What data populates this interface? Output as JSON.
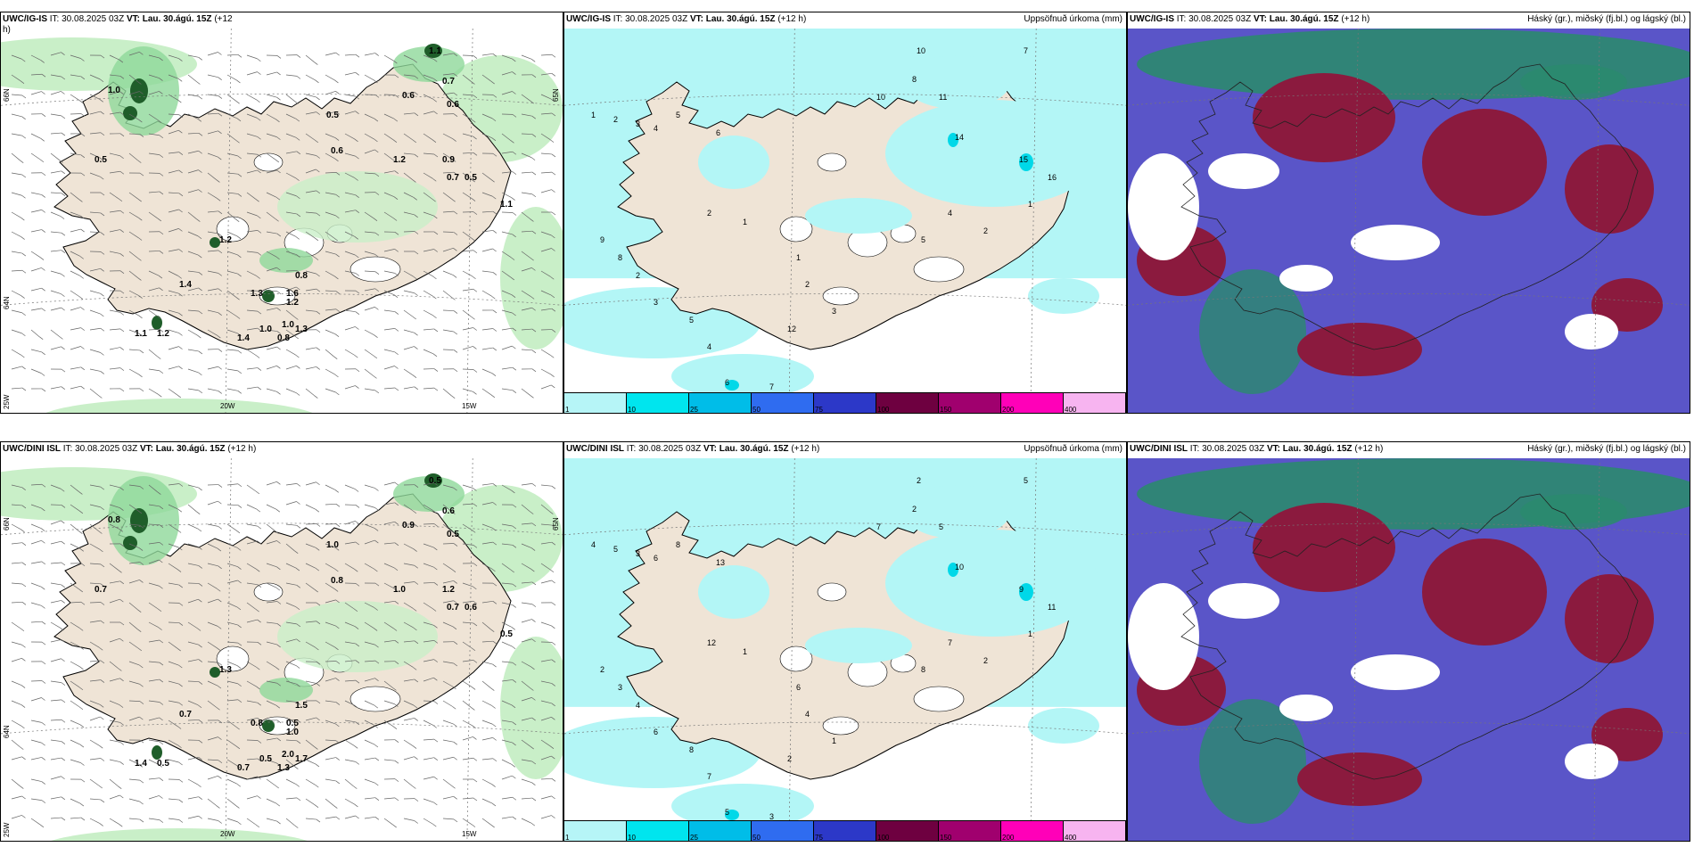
{
  "panels": [
    {
      "model": "UWC/IG-IS",
      "init_text": " IT: 30.08.2025 03Z ",
      "vt_label": "VT: Lau. 30.ágú. 15Z",
      "lead": " (+12",
      "lead2": "h)",
      "right_title": "",
      "type": "wind",
      "labels": [
        "1.1",
        "0.6",
        "0.7",
        "0.6",
        "0.5",
        "1.0",
        "0.5",
        "0.6",
        "1.2",
        "0.9",
        "0.7",
        "0.5",
        "1.1",
        "1.2",
        "1.4",
        "1.3",
        "1.6",
        "0.8",
        "1.2",
        "1.4",
        "1.0",
        "0.8",
        "1.0",
        "1.3",
        "1.1",
        "1.2"
      ]
    },
    {
      "model": "UWC/IG-IS",
      "init_text": " IT: 30.08.2025 03Z ",
      "vt_label": "VT: Lau. 30.ágú. 15Z",
      "lead": " (+12 h)",
      "lead2": "",
      "right_title": "Uppsöfnuð úrkoma (mm)",
      "type": "precip",
      "labels": [
        "10",
        "7",
        "8",
        "1",
        "2",
        "3",
        "4",
        "5",
        "6",
        "10",
        "11",
        "14",
        "15",
        "16",
        "2",
        "1",
        "9",
        "8",
        "2",
        "3",
        "5",
        "4",
        "6",
        "7",
        "12",
        "3",
        "2",
        "1",
        "5",
        "4",
        "2",
        "1"
      ]
    },
    {
      "model": "UWC/IG-IS",
      "init_text": " IT: 30.08.2025 03Z ",
      "vt_label": "VT: Lau. 30.ágú. 15Z",
      "lead": " (+12 h)",
      "lead2": "",
      "right_title": "Háský (gr.), miðský (fj.bl.) og lágský (bl.)",
      "type": "cloud"
    },
    {
      "model": "UWC/DINI ISL",
      "init_text": " IT: 30.08.2025 03Z ",
      "vt_label": "VT: Lau. 30.ágú. 15Z",
      "lead": " (+12 h)",
      "lead2": "",
      "right_title": "",
      "type": "wind",
      "labels": [
        "0.5",
        "0.9",
        "0.6",
        "0.5",
        "1.0",
        "0.8",
        "0.7",
        "0.8",
        "1.0",
        "1.2",
        "0.7",
        "0.6",
        "0.5",
        "1.3",
        "0.7",
        "0.8",
        "0.5",
        "1.5",
        "1.0",
        "0.7",
        "0.5",
        "1.3",
        "2.0",
        "1.7",
        "1.4",
        "0.5"
      ]
    },
    {
      "model": "UWC/DINI ISL",
      "init_text": " IT: 30.08.2025 03Z ",
      "vt_label": "VT: Lau. 30.ágú. 15Z",
      "lead": " (+12 h)",
      "lead2": "",
      "right_title": "Uppsöfnuð úrkoma (mm)",
      "type": "precip",
      "labels": [
        "2",
        "5",
        "2",
        "4",
        "5",
        "3",
        "6",
        "8",
        "13",
        "7",
        "5",
        "10",
        "9",
        "11",
        "12",
        "1",
        "2",
        "3",
        "4",
        "6",
        "8",
        "7",
        "5",
        "3",
        "2",
        "1",
        "4",
        "6",
        "8",
        "7",
        "2",
        "1"
      ]
    },
    {
      "model": "UWC/DINI ISL",
      "init_text": " IT: 30.08.2025 03Z ",
      "vt_label": "VT: Lau. 30.ágú. 15Z",
      "lead": " (+12 h)",
      "lead2": "",
      "right_title": "Háský (gr.), miðský (fj.bl.) og lágský (bl.)",
      "type": "cloud"
    }
  ],
  "colorbar": {
    "ticks": [
      "1",
      "10",
      "25",
      "50",
      "75",
      "100",
      "150",
      "200",
      "400"
    ],
    "colors": [
      "#b6f5f7",
      "#00e5ee",
      "#00bde8",
      "#2f6cf0",
      "#2c38c8",
      "#6e0040",
      "#a0006e",
      "#ff00b8",
      "#f7b4f0"
    ]
  },
  "axes": {
    "lon_labels": [
      "20W",
      "15W"
    ],
    "lat_labels": [
      "66N",
      "64N"
    ],
    "lon_edge": "25W",
    "lat_right": "65N"
  },
  "colors": {
    "land": "#efe4d6",
    "precip_light": "#b3f6f6",
    "green_light": "#c9efc8",
    "green_dark": "#1f5e2a",
    "cloud_high": "#2b8a6e",
    "cloud_mid": "#8b1a3e",
    "cloud_low": "#5a55c8"
  }
}
